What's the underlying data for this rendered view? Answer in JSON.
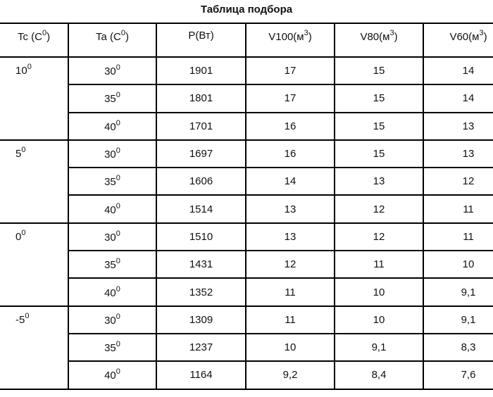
{
  "title": "Таблица подбора",
  "headers": [
    {
      "base": "Tc (C",
      "sup": "0",
      "tail": ")"
    },
    {
      "base": "Ta (C",
      "sup": "0",
      "tail": ")"
    },
    {
      "base": "P(Вт)",
      "sup": "",
      "tail": ""
    },
    {
      "base": "V100(м",
      "sup": "3",
      "tail": ")"
    },
    {
      "base": "V80(м",
      "sup": "3",
      "tail": ")"
    },
    {
      "base": "V60(м",
      "sup": "3",
      "tail": ")"
    }
  ],
  "groups": [
    {
      "tc": "10",
      "rows": [
        [
          "30",
          "1901",
          "17",
          "15",
          "14"
        ],
        [
          "35",
          "1801",
          "17",
          "15",
          "14"
        ],
        [
          "40",
          "1701",
          "16",
          "15",
          "13"
        ]
      ]
    },
    {
      "tc": "5",
      "rows": [
        [
          "30",
          "1697",
          "16",
          "15",
          "13"
        ],
        [
          "35",
          "1606",
          "14",
          "13",
          "12"
        ],
        [
          "40",
          "1514",
          "13",
          "12",
          "11"
        ]
      ]
    },
    {
      "tc": "0",
      "rows": [
        [
          "30",
          "1510",
          "13",
          "12",
          "11"
        ],
        [
          "35",
          "1431",
          "12",
          "11",
          "10"
        ],
        [
          "40",
          "1352",
          "11",
          "10",
          "9,1"
        ]
      ]
    },
    {
      "tc": "-5",
      "rows": [
        [
          "30",
          "1309",
          "11",
          "10",
          "9,1"
        ],
        [
          "35",
          "1237",
          "10",
          "9,1",
          "8,3"
        ],
        [
          "40",
          "1164",
          "9,2",
          "8,4",
          "7,6"
        ]
      ]
    }
  ],
  "degree_sup": "0"
}
